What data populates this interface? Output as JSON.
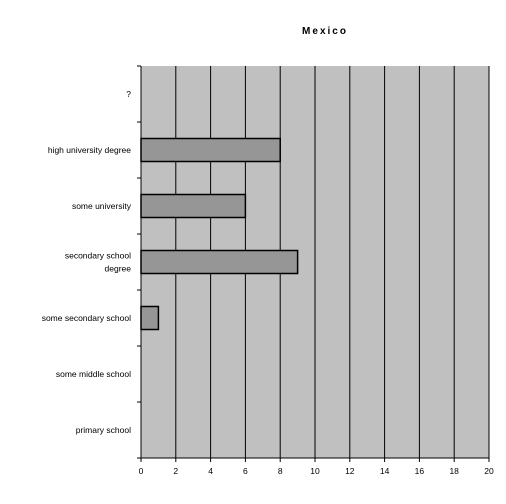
{
  "chart_data": {
    "type": "bar",
    "orientation": "horizontal",
    "title": "Mexico",
    "categories": [
      [
        "?"
      ],
      [
        "high university degree"
      ],
      [
        "some university"
      ],
      [
        "secondary school",
        "degree"
      ],
      [
        "some secondary school"
      ],
      [
        "some middle school"
      ],
      [
        "primary school"
      ]
    ],
    "values": [
      0,
      8,
      6,
      9,
      1,
      0,
      0
    ],
    "xlim": [
      0,
      20
    ],
    "xticks": [
      "0",
      "2",
      "4",
      "6",
      "8",
      "10",
      "12",
      "14",
      "16",
      "18",
      "20"
    ],
    "grid": true,
    "colors": {
      "plot_bg": "#c0c0c0",
      "bar": "#969696",
      "grid": "#000000"
    }
  }
}
